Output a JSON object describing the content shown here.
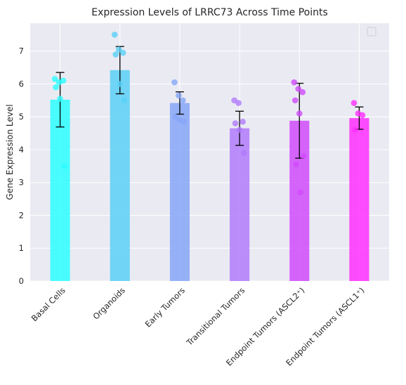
{
  "chart_data": {
    "type": "bar",
    "title": "Expression Levels of LRRC73 Across Time Points",
    "xlabel": "",
    "ylabel": "Gene Expression Level",
    "ylim": [
      0,
      7.85
    ],
    "yticks": [
      "0",
      "1",
      "2",
      "3",
      "4",
      "5",
      "6",
      "7"
    ],
    "categories": [
      "Basal Cells",
      "Organoids",
      "Early Tumors",
      "Transitional Tumors",
      "Endpoint Tumors (ASCL2⁺)",
      "Endpoint Tumors (ASCL1⁺)"
    ],
    "values": [
      5.52,
      6.42,
      5.42,
      4.65,
      4.88,
      4.96
    ],
    "error": [
      0.83,
      0.72,
      0.34,
      0.52,
      1.14,
      0.34
    ],
    "points": [
      [
        6.15,
        6.05,
        6.1,
        5.9,
        5.55,
        3.5
      ],
      [
        7.5,
        7.05,
        6.95,
        6.9,
        6.0,
        5.5
      ],
      [
        6.05,
        5.65,
        5.5,
        5.0,
        4.9,
        4.85
      ],
      [
        5.5,
        5.42,
        4.85,
        4.8,
        4.6,
        3.9
      ],
      [
        6.05,
        5.85,
        5.75,
        5.5,
        5.1,
        3.8,
        3.55,
        2.7
      ],
      [
        5.42,
        5.1,
        5.05,
        4.6
      ]
    ],
    "colors": [
      "#2cfeff",
      "#59d0f6",
      "#86a6f8",
      "#b17bfb",
      "#d04bfb",
      "#ff2ffe"
    ],
    "legend": "top-right (empty)",
    "grid": true,
    "style": "seaborn-darkgrid"
  }
}
